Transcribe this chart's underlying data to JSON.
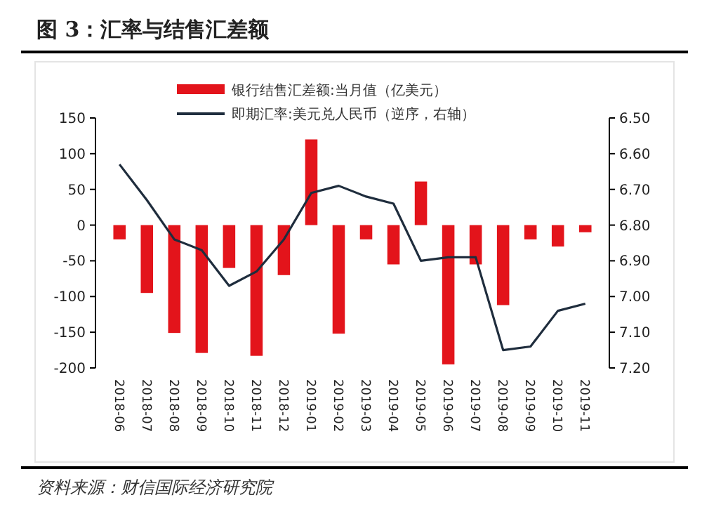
{
  "chart_data": {
    "type": "bar",
    "title": "图 3：汇率与结售汇差额",
    "categories": [
      "2018-06",
      "2018-07",
      "2018-08",
      "2018-09",
      "2018-10",
      "2018-11",
      "2018-12",
      "2019-01",
      "2019-02",
      "2019-03",
      "2019-04",
      "2019-05",
      "2019-06",
      "2019-07",
      "2019-08",
      "2019-09",
      "2019-10",
      "2019-11"
    ],
    "series": [
      {
        "name": "银行结售汇差额:当月值（亿美元）",
        "color": "#e3141b",
        "values": [
          -20,
          -95,
          -151,
          -179,
          -60,
          -183,
          -70,
          120,
          -152,
          -20,
          -55,
          61,
          -195,
          -55,
          -112,
          -20,
          -30,
          -10
        ]
      },
      {
        "name": "即期汇率:美元兑人民币（逆序，右轴）",
        "type": "line",
        "axis": "y2",
        "color": "#1f2d3d",
        "values": [
          6.63,
          6.73,
          6.84,
          6.87,
          6.97,
          6.93,
          6.84,
          6.71,
          6.69,
          6.72,
          6.74,
          6.9,
          6.89,
          6.89,
          7.15,
          7.14,
          7.04,
          7.02
        ]
      }
    ],
    "ylim": [
      -200,
      150
    ],
    "yticks": [
      -200,
      -150,
      -100,
      -50,
      0,
      50,
      100,
      150
    ],
    "y2lim": [
      7.2,
      6.5
    ],
    "y2ticks": [
      {
        "value": 6.5,
        "label": "6.50"
      },
      {
        "value": 6.6,
        "label": "6.60"
      },
      {
        "value": 6.7,
        "label": "6.70"
      },
      {
        "value": 6.8,
        "label": "6.80"
      },
      {
        "value": 6.9,
        "label": "6.90"
      },
      {
        "value": 7.0,
        "label": "7.00"
      },
      {
        "value": 7.1,
        "label": "7.10"
      },
      {
        "value": 7.2,
        "label": "7.20"
      }
    ],
    "legend": "top",
    "marker": "none",
    "line_style": "solid",
    "annotations": [
      "资料来源：财信国际经济研究院"
    ]
  }
}
